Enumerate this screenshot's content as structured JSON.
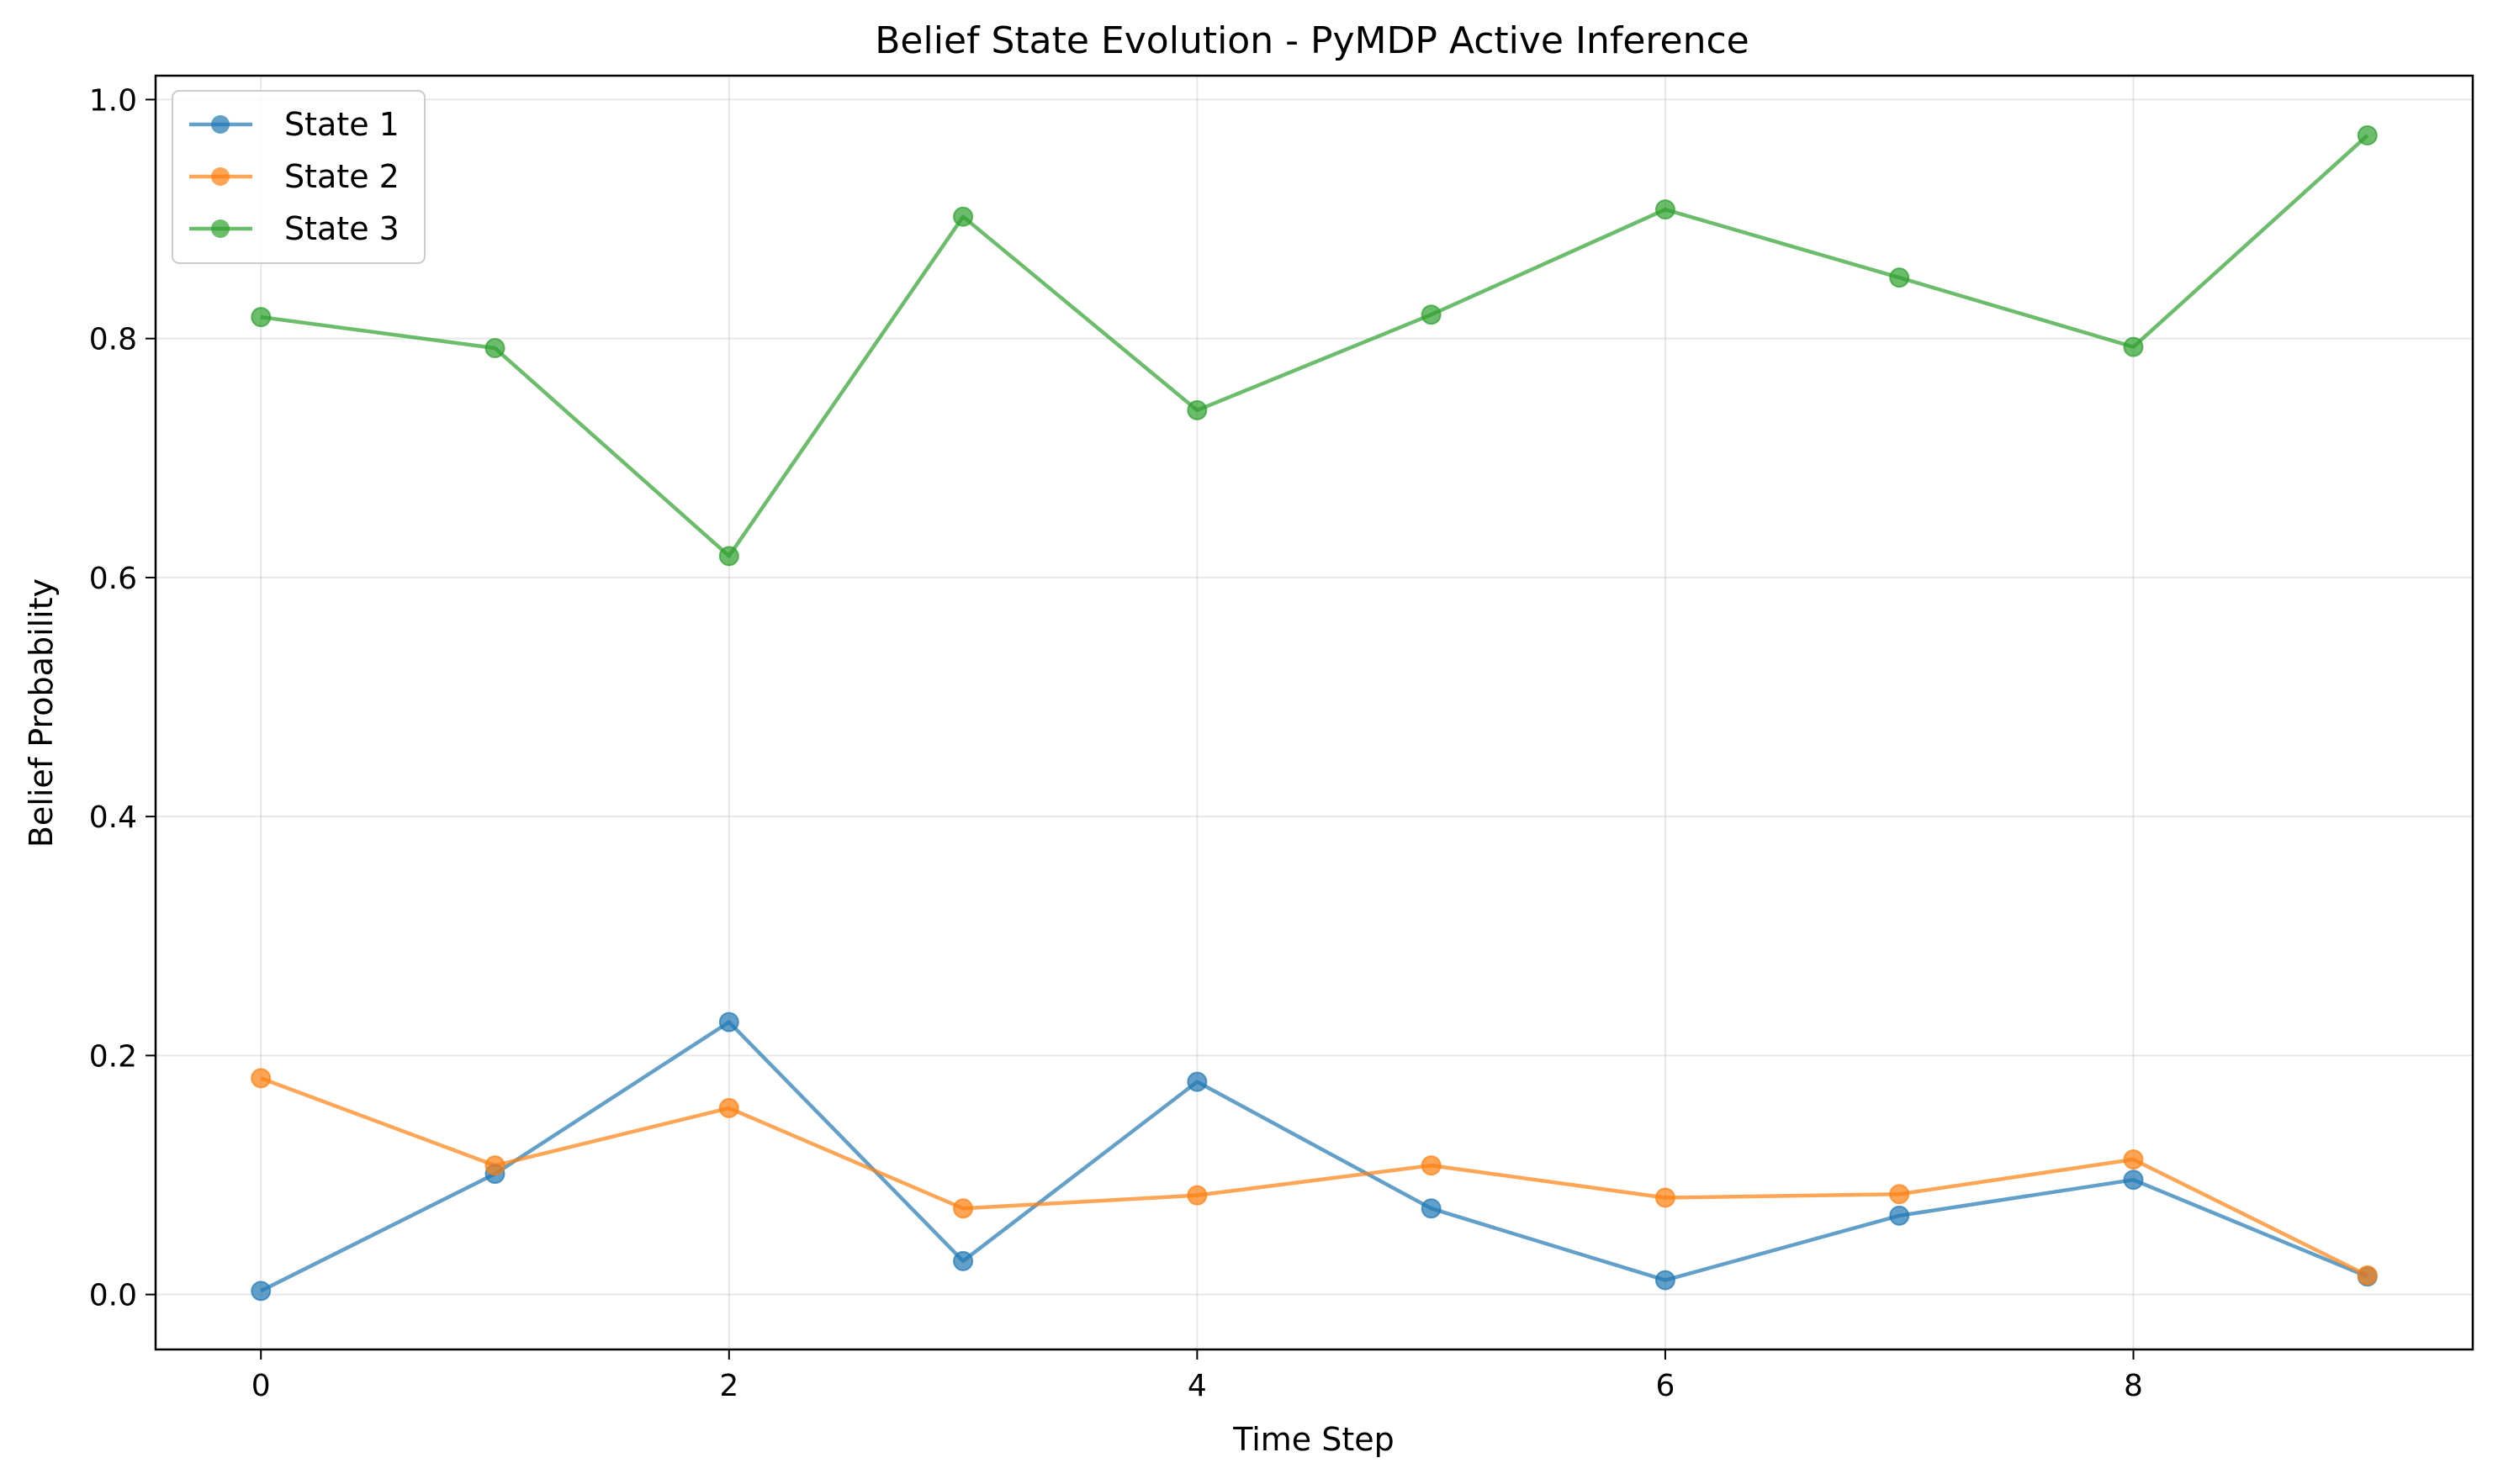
{
  "chart_data": {
    "type": "line",
    "title": "Belief State Evolution - PyMDP Active Inference",
    "xlabel": "Time Step",
    "ylabel": "Belief Probability",
    "x": [
      0,
      1,
      2,
      3,
      4,
      5,
      6,
      7,
      8,
      9
    ],
    "xlim": [
      -0.45,
      9.45
    ],
    "ylim": [
      -0.046,
      1.02
    ],
    "xticks": [
      0,
      2,
      4,
      6,
      8
    ],
    "yticks": [
      0.0,
      0.2,
      0.4,
      0.6,
      0.8,
      1.0
    ],
    "xtick_labels": [
      "0",
      "2",
      "4",
      "6",
      "8"
    ],
    "ytick_labels": [
      "0.0",
      "0.2",
      "0.4",
      "0.6",
      "0.8",
      "1.0"
    ],
    "grid": true,
    "legend_position": "top-left",
    "series": [
      {
        "name": "State 1",
        "color": "#1f77b4",
        "values": [
          0.003,
          0.101,
          0.228,
          0.028,
          0.178,
          0.072,
          0.012,
          0.066,
          0.096,
          0.015
        ]
      },
      {
        "name": "State 2",
        "color": "#ff7f0e",
        "values": [
          0.181,
          0.108,
          0.156,
          0.072,
          0.083,
          0.108,
          0.081,
          0.084,
          0.113,
          0.016
        ]
      },
      {
        "name": "State 3",
        "color": "#2ca02c",
        "values": [
          0.818,
          0.792,
          0.618,
          0.902,
          0.74,
          0.82,
          0.908,
          0.851,
          0.793,
          0.97
        ]
      }
    ]
  }
}
